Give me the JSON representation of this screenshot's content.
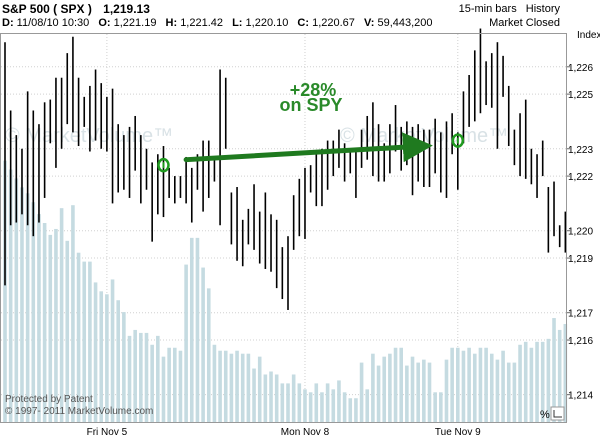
{
  "header": {
    "symbol": "S&P 500",
    "ticker": "( SPX )",
    "last": "1,219.13",
    "d_label": "D:",
    "d_value": "11/08/10 10:30",
    "o_label": "O:",
    "o_value": "1,221.19",
    "h_label": "H:",
    "h_value": "1,221.42",
    "l_label": "L:",
    "l_value": "1,220.10",
    "c_label": "C:",
    "c_value": "1,220.67",
    "v_label": "V:",
    "v_value": "59,443,200",
    "interval": "15-min bars",
    "history": "History",
    "market_status": "Market Closed"
  },
  "watermark": "© MarketVolume™",
  "annotation": {
    "line1": "+28%",
    "line2": "on SPY"
  },
  "footer": {
    "patent": "Protected by Patent",
    "copyright": "© 1997- 2011 MarketVolume.com",
    "percent_button": "%"
  },
  "colors": {
    "bar": "#000000",
    "volume": "#c5dbe1",
    "grid": "#d0d0d0",
    "arrow": "#1f7a1f"
  },
  "chart_data": {
    "type": "bar",
    "subtype": "ohlc-with-volume",
    "y_axis_title": "Index",
    "y_ticks": [
      1226,
      1225,
      1223,
      1222,
      1220,
      1219,
      1217,
      1216,
      1214
    ],
    "y_tick_labels": [
      "1,226",
      "1,225",
      "1,223",
      "1,222",
      "1,220",
      "1,219",
      "1,217",
      "1,216",
      "1,214"
    ],
    "ylim": [
      1213.0,
      1227.2
    ],
    "x_labels": [
      {
        "bar": 18,
        "label": "Fri Nov 5"
      },
      {
        "bar": 53,
        "label": "Mon Nov 8"
      },
      {
        "bar": 80,
        "label": "Tue Nov 9"
      }
    ],
    "bars": [
      [
        1226.9,
        1218.0
      ],
      [
        1224.4,
        1220.2
      ],
      [
        1223.5,
        1220.3
      ],
      [
        1223.0,
        1220.6
      ],
      [
        1225.1,
        1220.2
      ],
      [
        1224.4,
        1219.8
      ],
      [
        1223.9,
        1220.3
      ],
      [
        1224.7,
        1221.2
      ],
      [
        1224.8,
        1223.2
      ],
      [
        1225.6,
        1222.3
      ],
      [
        1225.6,
        1223.0
      ],
      [
        1226.5,
        1223.9
      ],
      [
        1227.1,
        1223.6
      ],
      [
        1225.6,
        1223.1
      ],
      [
        1224.9,
        1223.8
      ],
      [
        1225.3,
        1222.9
      ],
      [
        1225.9,
        1223.3
      ],
      [
        1225.4,
        1223.0
      ],
      [
        1224.9,
        1222.9
      ],
      [
        1225.2,
        1221.0
      ],
      [
        1223.9,
        1221.4
      ],
      [
        1223.5,
        1221.5
      ],
      [
        1223.8,
        1221.2
      ],
      [
        1224.2,
        1222.2
      ],
      [
        1223.5,
        1221.0
      ],
      [
        1223.0,
        1221.5
      ],
      [
        1222.5,
        1219.6
      ],
      [
        1222.8,
        1220.6
      ],
      [
        1223.1,
        1220.5
      ],
      [
        1222.3,
        1221.2
      ],
      [
        1222.0,
        1221.0
      ],
      [
        1222.0,
        1221.2
      ],
      [
        1222.7,
        1221.0
      ],
      [
        1222.3,
        1220.3
      ],
      [
        1222.8,
        1221.5
      ],
      [
        1223.3,
        1220.7
      ],
      [
        1223.3,
        1221.2
      ],
      [
        1222.6,
        1221.8
      ],
      [
        1225.9,
        1220.2
      ],
      [
        1225.6,
        1223.0
      ],
      [
        1221.4,
        1219.5
      ],
      [
        1221.6,
        1218.9
      ],
      [
        1220.4,
        1218.7
      ],
      [
        1220.8,
        1219.5
      ],
      [
        1221.7,
        1219.3
      ],
      [
        1220.7,
        1218.8
      ],
      [
        1221.4,
        1218.6
      ],
      [
        1220.6,
        1218.5
      ],
      [
        1220.4,
        1217.9
      ],
      [
        1219.4,
        1217.5
      ],
      [
        1219.8,
        1217.1
      ],
      [
        1221.3,
        1219.3
      ],
      [
        1221.9,
        1219.8
      ],
      [
        1222.3,
        1219.7
      ],
      [
        1222.4,
        1221.4
      ],
      [
        1222.8,
        1220.9
      ],
      [
        1223.0,
        1220.9
      ],
      [
        1223.3,
        1221.5
      ],
      [
        1223.3,
        1222.0
      ],
      [
        1223.7,
        1222.3
      ],
      [
        1223.2,
        1221.8
      ],
      [
        1223.0,
        1222.1
      ],
      [
        1222.9,
        1221.2
      ],
      [
        1223.7,
        1222.3
      ],
      [
        1224.2,
        1222.6
      ],
      [
        1224.7,
        1222.0
      ],
      [
        1223.9,
        1221.8
      ],
      [
        1223.2,
        1221.8
      ],
      [
        1223.9,
        1222.1
      ],
      [
        1224.6,
        1222.9
      ],
      [
        1223.8,
        1222.2
      ],
      [
        1224.0,
        1222.4
      ],
      [
        1223.8,
        1221.3
      ],
      [
        1223.9,
        1221.8
      ],
      [
        1223.7,
        1221.6
      ],
      [
        1223.7,
        1221.6
      ],
      [
        1224.1,
        1222.1
      ],
      [
        1223.6,
        1221.4
      ],
      [
        1224.0,
        1221.2
      ],
      [
        1224.3,
        1222.8
      ],
      [
        1223.6,
        1221.5
      ],
      [
        1225.1,
        1223.2
      ],
      [
        1225.7,
        1223.8
      ],
      [
        1226.6,
        1224.0
      ],
      [
        1227.4,
        1224.3
      ],
      [
        1226.2,
        1224.6
      ],
      [
        1226.5,
        1224.5
      ],
      [
        1226.9,
        1223.0
      ],
      [
        1226.4,
        1224.9
      ],
      [
        1225.3,
        1223.1
      ],
      [
        1223.7,
        1222.4
      ],
      [
        1224.3,
        1222.0
      ],
      [
        1224.8,
        1221.9
      ],
      [
        1223.0,
        1221.7
      ],
      [
        1222.8,
        1221.2
      ],
      [
        1223.3,
        1222.0
      ],
      [
        1221.6,
        1219.2
      ],
      [
        1221.8,
        1219.8
      ],
      [
        1220.2,
        1219.4
      ],
      [
        1220.7,
        1219.2
      ]
    ],
    "volume_ratio": [
      0.88,
      0.85,
      0.82,
      0.79,
      0.77,
      0.74,
      0.7,
      0.67,
      0.63,
      0.65,
      0.72,
      0.61,
      0.73,
      0.57,
      0.54,
      0.54,
      0.47,
      0.44,
      0.43,
      0.48,
      0.41,
      0.37,
      0.29,
      0.31,
      0.3,
      0.3,
      0.26,
      0.29,
      0.22,
      0.25,
      0.25,
      0.24,
      0.53,
      0.62,
      0.62,
      0.52,
      0.45,
      0.26,
      0.24,
      0.24,
      0.23,
      0.24,
      0.23,
      0.23,
      0.18,
      0.22,
      0.16,
      0.17,
      0.16,
      0.13,
      0.13,
      0.16,
      0.13,
      0.11,
      0.1,
      0.13,
      0.1,
      0.13,
      0.11,
      0.14,
      0.1,
      0.08,
      0.08,
      0.2,
      0.11,
      0.23,
      0.19,
      0.22,
      0.23,
      0.25,
      0.25,
      0.19,
      0.22,
      0.2,
      0.21,
      0.2,
      0.1,
      0.1,
      0.21,
      0.25,
      0.25,
      0.24,
      0.25,
      0.23,
      0.25,
      0.25,
      0.23,
      0.21,
      0.24,
      0.2,
      0.2,
      0.26,
      0.27,
      0.25,
      0.27,
      0.27,
      0.28,
      0.35,
      0.31,
      0.33
    ],
    "markers": [
      {
        "bar": 28,
        "y": 1222.4
      },
      {
        "bar": 80,
        "y": 1223.3
      }
    ],
    "arrow": {
      "from": {
        "bar": 32,
        "y": 1222.6
      },
      "to": {
        "bar": 74,
        "y": 1223.1
      }
    },
    "grid": true
  }
}
